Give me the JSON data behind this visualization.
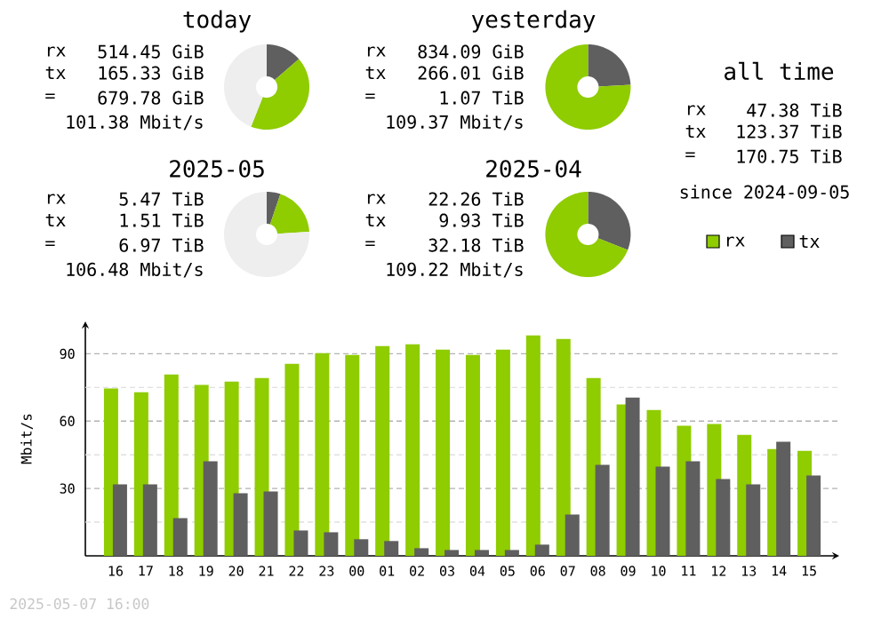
{
  "chart_data": [
    {
      "type": "donut",
      "title": "today",
      "categories": [
        null,
        null,
        null
      ],
      "values": [
        13.6,
        42.4,
        44
      ],
      "colors": [
        "#5f5f5f",
        "#8fcc00",
        "#eeeeee"
      ],
      "annotations": [
        "rx",
        "514.45 GiB",
        "tx",
        "165.33 GiB",
        "=",
        "679.78 GiB",
        "101.38 Mbit/s"
      ]
    },
    {
      "type": "donut",
      "title": "yesterday",
      "categories": [
        null,
        null
      ],
      "values": [
        24.2,
        75.8
      ],
      "colors": [
        "#5f5f5f",
        "#8fcc00"
      ],
      "annotations": [
        "rx",
        "834.09 GiB",
        "tx",
        "266.01 GiB",
        "=",
        "1.07 TiB",
        "109.37 Mbit/s"
      ]
    },
    {
      "type": "other",
      "title": "all time",
      "annotations": [
        "rx",
        "47.38 TiB",
        "tx",
        "123.37 TiB",
        "=",
        "170.75 TiB",
        "since 2024-09-05"
      ]
    },
    {
      "type": "donut",
      "title": "2025-05",
      "categories": [
        null,
        null,
        null
      ],
      "values": [
        5.2,
        18.8,
        76
      ],
      "colors": [
        "#5f5f5f",
        "#8fcc00",
        "#eeeeee"
      ],
      "annotations": [
        "rx",
        "5.47 TiB",
        "tx",
        "1.51 TiB",
        "=",
        "6.97 TiB",
        "106.48 Mbit/s"
      ]
    },
    {
      "type": "donut",
      "title": "2025-04",
      "categories": [
        null,
        null
      ],
      "values": [
        30.9,
        69.1
      ],
      "colors": [
        "#5f5f5f",
        "#8fcc00"
      ],
      "annotations": [
        "rx",
        "22.26 TiB",
        "tx",
        "9.93 TiB",
        "=",
        "32.18 TiB",
        "109.22 Mbit/s"
      ]
    },
    {
      "type": "bar",
      "ylabel": "Mbit/s",
      "categories": [
        "16",
        "17",
        "18",
        "19",
        "20",
        "21",
        "22",
        "23",
        "00",
        "01",
        "02",
        "03",
        "04",
        "05",
        "06",
        "07",
        "08",
        "09",
        "10",
        "11",
        "12",
        "13",
        "14",
        "15"
      ],
      "series": [
        {
          "name": "rx",
          "color": "#8fcc00",
          "values": [
            74.5,
            72.9,
            80.8,
            76.1,
            77.6,
            79.2,
            85.5,
            90.3,
            89.5,
            93.4,
            94.2,
            91.8,
            89.5,
            91.8,
            98.2,
            96.6,
            79.2,
            67.4,
            65.0,
            57.9,
            58.7,
            53.9,
            47.6,
            46.8
          ]
        },
        {
          "name": "tx",
          "color": "#5f5f5f",
          "values": [
            31.8,
            31.8,
            16.8,
            42.1,
            27.9,
            28.7,
            11.3,
            10.5,
            7.4,
            6.6,
            3.4,
            2.6,
            2.6,
            2.6,
            5.0,
            18.4,
            40.5,
            70.5,
            39.7,
            42.1,
            34.2,
            31.8,
            50.8,
            35.8
          ]
        }
      ],
      "ylim": [
        0,
        104.4
      ],
      "yticks": [
        {
          "value": 15,
          "label": null
        },
        30,
        {
          "value": 45,
          "label": null
        },
        60,
        {
          "value": 75,
          "label": null
        },
        90
      ],
      "grid": "y",
      "legend": "top right",
      "annotations": [
        "2025-05-07 16:00"
      ]
    }
  ]
}
